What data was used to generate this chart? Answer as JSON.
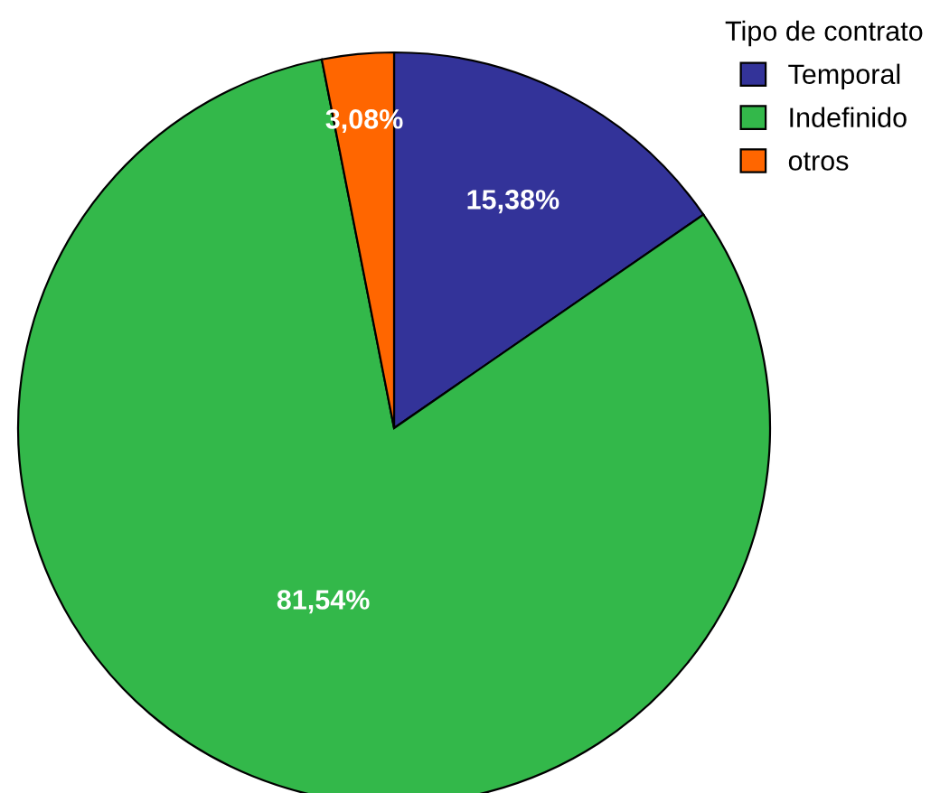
{
  "chart_data": {
    "type": "pie",
    "legend_title": "Tipo de contrato",
    "categories": [
      "Temporal",
      "Indefinido",
      "otros"
    ],
    "values": [
      15.38,
      81.54,
      3.08
    ],
    "colors": [
      "#333399",
      "#33b84a",
      "#ff6600"
    ],
    "value_labels": [
      "15,38%",
      "81,54%",
      "3,08%"
    ],
    "legend": "top right"
  }
}
